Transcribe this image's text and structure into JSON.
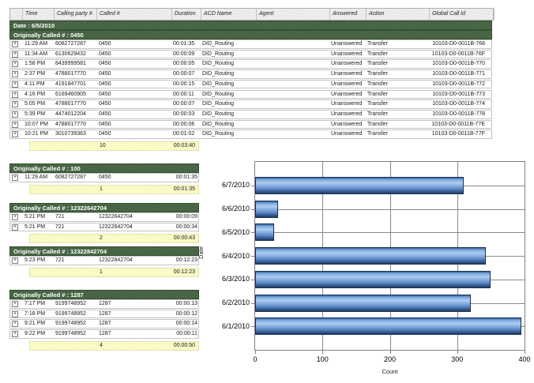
{
  "report": {
    "columns": [
      "Time",
      "Calling party #",
      "Called #",
      "Duration",
      "ACD Name",
      "Agent",
      "Answered",
      "Action",
      "Global Call Id"
    ],
    "date_band": "Date : 6/5/2010",
    "expand_icon": "+",
    "groups": [
      {
        "label": "Originally Called # : 0450",
        "wide": true,
        "rows": [
          {
            "time": "11:29 AM",
            "calling": "6082727287",
            "called": "0450",
            "duration": "00:01:35",
            "acd": "DID_Routing",
            "agent": "",
            "answered": "Unanswered",
            "action": "Transfer",
            "global_call_id": "10103-D0-0011B-768"
          },
          {
            "time": "11:34 AM",
            "calling": "6130629432",
            "called": "0450",
            "duration": "00:00:09",
            "acd": "DID_Routing",
            "agent": "",
            "answered": "Unanswered",
            "action": "Transfer",
            "global_call_id": "10103-D0-0011B-76F"
          },
          {
            "time": "1:58 PM",
            "calling": "8439999581",
            "called": "0450",
            "duration": "00:00:05",
            "acd": "DID_Routing",
            "agent": "",
            "answered": "Unanswered",
            "action": "Transfer",
            "global_call_id": "10103-D0-0011B-770"
          },
          {
            "time": "2:37 PM",
            "calling": "4788017770",
            "called": "0450",
            "duration": "00:00:07",
            "acd": "DID_Routing",
            "agent": "",
            "answered": "Unanswered",
            "action": "Transfer",
            "global_call_id": "10103-D0-0011B-771"
          },
          {
            "time": "4:11 PM",
            "calling": "4191847701",
            "called": "0450",
            "duration": "00:00:15",
            "acd": "DID_Routing",
            "agent": "",
            "answered": "Unanswered",
            "action": "Transfer",
            "global_call_id": "10103-D0-0011B-772"
          },
          {
            "time": "4:16 PM",
            "calling": "6169460905",
            "called": "0450",
            "duration": "00:00:11",
            "acd": "DID_Routing",
            "agent": "",
            "answered": "Unanswered",
            "action": "Transfer",
            "global_call_id": "10103-D0-0011B-773"
          },
          {
            "time": "5:05 PM",
            "calling": "4788017770",
            "called": "0450",
            "duration": "00:00:07",
            "acd": "DID_Routing",
            "agent": "",
            "answered": "Unanswered",
            "action": "Transfer",
            "global_call_id": "10103-D0-0011B-774"
          },
          {
            "time": "5:39 PM",
            "calling": "4474012204",
            "called": "0450",
            "duration": "00:00:03",
            "acd": "DID_Routing",
            "agent": "",
            "answered": "Unanswered",
            "action": "Transfer",
            "global_call_id": "10103-D0-0011B-778"
          },
          {
            "time": "10:07 PM",
            "calling": "4788017770",
            "called": "0450",
            "duration": "00:00:06",
            "acd": "DID_Routing",
            "agent": "",
            "answered": "Unanswered",
            "action": "Transfer",
            "global_call_id": "10103-D0-0011B-77E"
          },
          {
            "time": "10:21 PM",
            "calling": "3010739363",
            "called": "0450",
            "duration": "00:01:02",
            "acd": "DID_Routing",
            "agent": "",
            "answered": "Unanswered",
            "action": "Transfer",
            "global_call_id": "10103-D0-0011B-77F"
          }
        ],
        "summary": {
          "count": "10",
          "total_duration": "00:03:40"
        }
      },
      {
        "label": "Originally Called # : 100",
        "wide": false,
        "rows": [
          {
            "time": "11:29 AM",
            "calling": "6082727287",
            "called": "0450",
            "duration": "00:01:35"
          }
        ],
        "summary": {
          "count": "1",
          "total_duration": "00:01:35"
        }
      },
      {
        "label": "Originally Called # : 12322642704",
        "wide": false,
        "rows": [
          {
            "time": "5:21 PM",
            "calling": "721",
            "called": "12322642704",
            "duration": "00:00:09"
          },
          {
            "time": "5:21 PM",
            "calling": "721",
            "called": "12322642704",
            "duration": "00:00:34"
          }
        ],
        "summary": {
          "count": "2",
          "total_duration": "00:00:43"
        }
      },
      {
        "label": "Originally Called # : 12322842704",
        "wide": false,
        "rows": [
          {
            "time": "5:23 PM",
            "calling": "721",
            "called": "12322842704",
            "duration": "00:12:23"
          }
        ],
        "summary": {
          "count": "1",
          "total_duration": "00:12:23"
        }
      },
      {
        "label": "Originally Called # : 1287",
        "wide": false,
        "rows": [
          {
            "time": "7:17 PM",
            "calling": "9199748952",
            "called": "1287",
            "duration": "00:00:13"
          },
          {
            "time": "7:18 PM",
            "calling": "9199748952",
            "called": "1287",
            "duration": "00:00:12"
          },
          {
            "time": "9:21 PM",
            "calling": "9199748952",
            "called": "1287",
            "duration": "00:00:14"
          },
          {
            "time": "9:22 PM",
            "calling": "9199748952",
            "called": "1287",
            "duration": "00:00:11"
          }
        ],
        "summary": {
          "count": "4",
          "total_duration": "00:00:50"
        }
      }
    ]
  },
  "chart_data": {
    "type": "bar",
    "orientation": "horizontal",
    "title": "",
    "categories": [
      "6/7/2010",
      "6/6/2010",
      "6/5/2010",
      "6/4/2010",
      "6/3/2010",
      "6/2/2010",
      "6/1/2010"
    ],
    "values": [
      310,
      34,
      28,
      342,
      350,
      320,
      395
    ],
    "xlabel": "Count",
    "ylabel": "Date",
    "xlim": [
      0,
      400
    ],
    "xticks": [
      0,
      100,
      200,
      300,
      400
    ],
    "grid": true,
    "legend": "none",
    "bar_color": "#6f9fd8"
  },
  "colors": {
    "group_band_green": "#41603e",
    "summary_yellow": "#ffffcc",
    "bar_blue": "#6f9fd8",
    "grid_line": "#8a8a8a"
  }
}
